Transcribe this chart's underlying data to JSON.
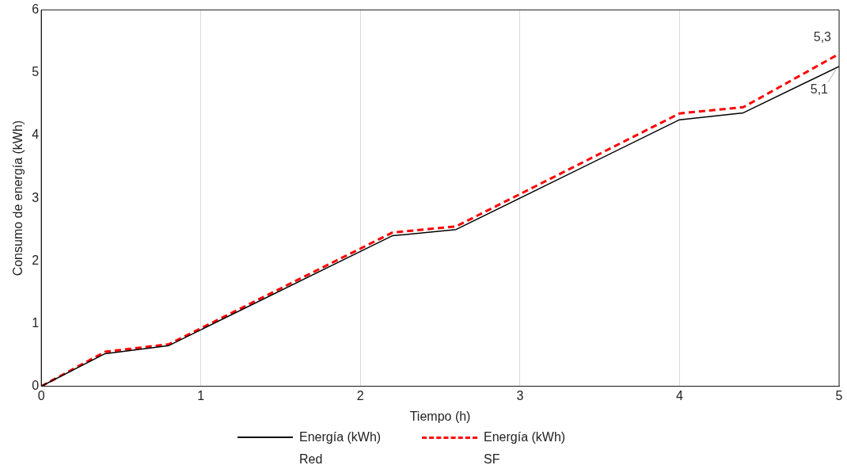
{
  "chart_data": {
    "type": "line",
    "xlabel": "Tiempo (h)",
    "ylabel": "Consumo de energía (kWh)",
    "xlim": [
      0,
      5
    ],
    "xticks": [
      0,
      1,
      2,
      3,
      4,
      5
    ],
    "ylim": [
      0,
      6
    ],
    "yticks": [
      0,
      1,
      2,
      3,
      4,
      5,
      6
    ],
    "grid": "x",
    "legend": "bottom",
    "marker": "none",
    "series": [
      {
        "name": "Energía (kWh) Red",
        "color": "#000000",
        "line_style": "solid",
        "x": [
          0,
          0.4,
          0.8,
          2.2,
          2.6,
          4,
          4.4,
          5
        ],
        "values": [
          0,
          0.52,
          0.65,
          2.4,
          2.5,
          4.25,
          4.36,
          5.1
        ]
      },
      {
        "name": "Energía (kWh) SF",
        "color": "#ff0000",
        "line_style": "dashed",
        "x": [
          0,
          0.4,
          0.8,
          2.2,
          2.6,
          4,
          4.4,
          5
        ],
        "values": [
          0,
          0.55,
          0.67,
          2.45,
          2.55,
          4.35,
          4.45,
          5.3
        ]
      }
    ],
    "annotations": [
      {
        "text": "5,3",
        "x": 5,
        "y": 5.3
      },
      {
        "text": "5,1",
        "x": 5,
        "y": 5.1
      }
    ]
  }
}
